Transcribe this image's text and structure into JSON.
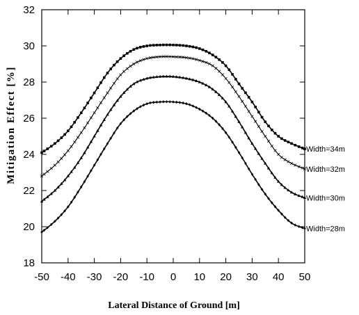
{
  "chart_data": {
    "type": "line",
    "title": "",
    "xlabel": "Lateral Distance of Ground [m]",
    "ylabel": "Mitigation Effect [%]",
    "xlim": [
      -50,
      50
    ],
    "ylim": [
      18,
      32
    ],
    "x_ticks": [
      -50,
      -40,
      -30,
      -20,
      -10,
      0,
      10,
      20,
      30,
      40,
      50
    ],
    "y_ticks": [
      18,
      20,
      22,
      24,
      26,
      28,
      30,
      32
    ],
    "grid": false,
    "legend": "labels at right end of lines",
    "line_color": "#000000",
    "x": [
      -50,
      -45,
      -40,
      -35,
      -30,
      -25,
      -20,
      -15,
      -10,
      -5,
      0,
      5,
      10,
      15,
      20,
      25,
      30,
      35,
      40,
      45,
      50
    ],
    "series": [
      {
        "name": "Width=34m",
        "marker": "square",
        "values": [
          24.1,
          24.6,
          25.3,
          26.3,
          27.4,
          28.5,
          29.3,
          29.8,
          30.0,
          30.05,
          30.05,
          30.0,
          29.85,
          29.5,
          28.9,
          27.9,
          26.9,
          25.8,
          25.0,
          24.6,
          24.3
        ]
      },
      {
        "name": "Width=32m",
        "marker": "cross",
        "values": [
          22.8,
          23.4,
          24.2,
          25.2,
          26.3,
          27.4,
          28.4,
          29.0,
          29.3,
          29.4,
          29.4,
          29.35,
          29.2,
          28.9,
          28.2,
          27.2,
          26.1,
          25.0,
          24.0,
          23.5,
          23.2
        ]
      },
      {
        "name": "Width=30m",
        "marker": "triangle",
        "values": [
          21.4,
          22.0,
          22.8,
          23.8,
          25.0,
          26.2,
          27.2,
          27.9,
          28.2,
          28.3,
          28.3,
          28.2,
          28.0,
          27.6,
          26.9,
          25.8,
          24.6,
          23.5,
          22.5,
          21.9,
          21.6
        ]
      },
      {
        "name": "Width=28m",
        "marker": "diamond",
        "values": [
          19.7,
          20.3,
          21.1,
          22.2,
          23.4,
          24.6,
          25.7,
          26.4,
          26.8,
          26.9,
          26.9,
          26.8,
          26.5,
          26.0,
          25.2,
          24.1,
          22.9,
          21.8,
          20.9,
          20.2,
          19.9
        ]
      }
    ]
  }
}
